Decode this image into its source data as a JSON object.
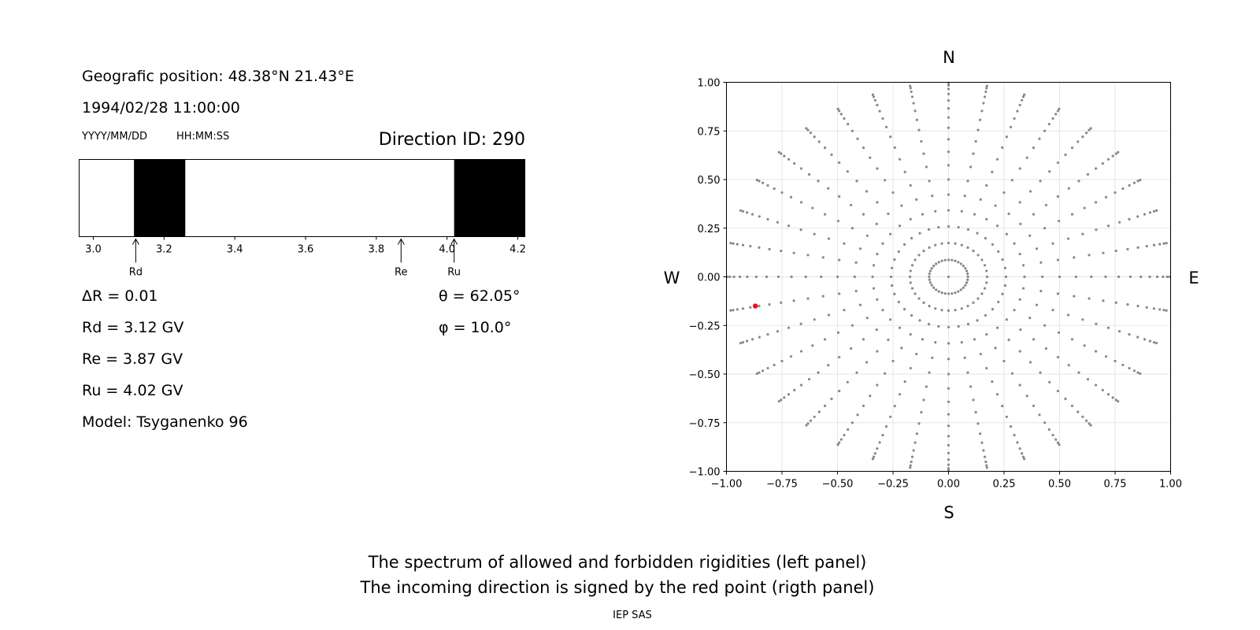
{
  "left_panel": {
    "position_text": "Geografic position: 48.38°N 21.43°E",
    "datetime_text": "1994/02/28 11:00:00",
    "date_format_label": "YYYY/MM/DD",
    "time_format_label": "HH:MM:SS",
    "direction_text": "Direction ID: 290",
    "stats": {
      "dr": "ΔR = 0.01",
      "rd": "Rd = 3.12 GV",
      "re": "Re = 3.87 GV",
      "ru": "Ru = 4.02 GV",
      "model": "Model: Tsyganenko 96",
      "theta": "θ = 62.05°",
      "phi": "φ = 10.0°"
    }
  },
  "footer": {
    "caption_line1": "The spectrum of allowed and forbidden rigidities (left panel)",
    "caption_line2": "The incoming direction is signed by the red point (rigth panel)",
    "credit": "IEP SAS"
  },
  "colors": {
    "forbidden_band": "#000000",
    "grid_point": "#888888",
    "selected_point": "#e8141e",
    "grid_line": "#e6e6e6"
  },
  "chart_data": [
    {
      "type": "bar",
      "xlim": [
        2.96,
        4.22
      ],
      "xticks": [
        3.0,
        3.2,
        3.4,
        3.6,
        3.8,
        4.0,
        4.2
      ],
      "tick_labels": [
        "3.0",
        "3.2",
        "3.4",
        "3.6",
        "3.8",
        "4.0",
        "4.2"
      ],
      "forbidden_bands": [
        [
          3.115,
          3.26
        ],
        [
          4.02,
          4.22
        ]
      ],
      "markers": [
        {
          "label": "Rd",
          "x": 3.12
        },
        {
          "label": "Re",
          "x": 3.87
        },
        {
          "label": "Ru",
          "x": 4.02
        }
      ]
    },
    {
      "type": "scatter",
      "xlim": [
        -1,
        1
      ],
      "ylim": [
        -1,
        1
      ],
      "grid": true,
      "xticks": [
        -1,
        -0.75,
        -0.5,
        -0.25,
        0,
        0.25,
        0.5,
        0.75,
        1
      ],
      "yticks": [
        -1,
        -0.75,
        -0.5,
        -0.25,
        0,
        0.25,
        0.5,
        0.75,
        1
      ],
      "xtick_labels": [
        "−1.00",
        "−0.75",
        "−0.50",
        "−0.25",
        "0.00",
        "0.25",
        "0.50",
        "0.75",
        "1.00"
      ],
      "ytick_labels": [
        "−1.00",
        "−0.75",
        "−0.50",
        "−0.25",
        "0.00",
        "0.25",
        "0.50",
        "0.75",
        "1.00"
      ],
      "compass": {
        "north": "N",
        "south": "S",
        "east": "E",
        "west": "W"
      },
      "direction_grid": {
        "azimuth_step_deg": 10,
        "zenith_start_deg": 5,
        "zenith_step_deg": 5,
        "zenith_max_deg": 85,
        "center_point": true,
        "projection": "r = sin(zenith)"
      },
      "selected_point": {
        "x": -0.87,
        "y": -0.15
      }
    }
  ]
}
